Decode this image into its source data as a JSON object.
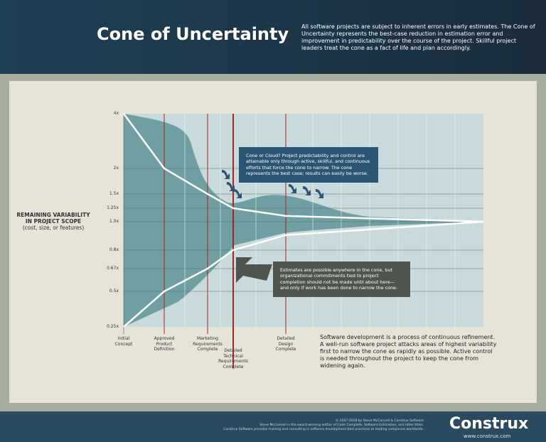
{
  "header": {
    "title": "Cone of Uncertainty",
    "intro": "All software projects are subject to inherent errors in early estimates. The Cone of Uncertainty represents the best-case reduction in estimation error and improvement in predictability over the course of the project. Skillful project leaders treat the cone as a fact of life and plan accordingly."
  },
  "colors": {
    "header": "#1d3547",
    "cone_fill": "#6f9ea3",
    "plot_bg": "#c9dadd",
    "milestone_line": "#b0202a",
    "note_blue": "#2b5574",
    "note_gray": "#4e554e"
  },
  "chart_data": {
    "type": "line",
    "ylabel_title": "REMAINING VARIABILITY IN PROJECT SCOPE",
    "ylabel_sub": "(cost, size, or features)",
    "y_scale": "log",
    "y_ticks": [
      "4x",
      "2x",
      "1.5x",
      "1.25x",
      "1.0x",
      "0.8x",
      "0.67x",
      "0.5x",
      "0.25x"
    ],
    "y_tick_values": [
      4,
      2,
      1.5,
      1.25,
      1,
      0.8,
      0.67,
      0.5,
      0.25
    ],
    "milestones": [
      {
        "label": "Initial Concept",
        "lines": [
          "Initial",
          "Concept"
        ]
      },
      {
        "label": "Approved Product Definition",
        "lines": [
          "Approved",
          "Product",
          "Definition"
        ]
      },
      {
        "label": "Marketing Requirements Complete",
        "lines": [
          "Marketing",
          "Requirements",
          "Complete"
        ]
      },
      {
        "label": "Detailed Technical Requirements Complete",
        "lines": [
          "Detailed",
          "Technical",
          "Requirements",
          "Complete"
        ]
      },
      {
        "label": "Detailed Design Complete",
        "lines": [
          "Detailed",
          "Design",
          "Complete"
        ]
      }
    ],
    "series": [
      {
        "role": "upper bound",
        "values": [
          4,
          2,
          1.5,
          1.25,
          1.1,
          1.0
        ]
      },
      {
        "role": "lower bound",
        "values": [
          0.25,
          0.5,
          0.67,
          0.8,
          0.9,
          1.0
        ]
      }
    ],
    "grid": true
  },
  "notes": {
    "cloud": "Cone or Cloud? Project predictability and control are attainable only through active, skillful, and continuous efforts that force the cone to narrow. The cone represents the best case; results can easily be worse.",
    "commit": "Estimates are possible anywhere in the cone, but organizational commitments tied to project completion should not be made until about here—and only if work has been done to narrow the cone."
  },
  "summary": "Software development is a process of continuous refinement. A well-run software project attacks areas of highest variability first to narrow the cone as rapidly as possible. Active control is needed throughout the project to keep the cone from widening again.",
  "footer": {
    "copyright": "© 2007-2018 by Steve McConnell & Construx Software",
    "line2": "Steve McConnell is the award-winning author of Code Complete, Software Estimation, and other titles.",
    "line3": "Construx Software provides training and consulting in software development best practices to leading companies worldwide.",
    "logo": "Construx",
    "url": "www.construx.com"
  }
}
